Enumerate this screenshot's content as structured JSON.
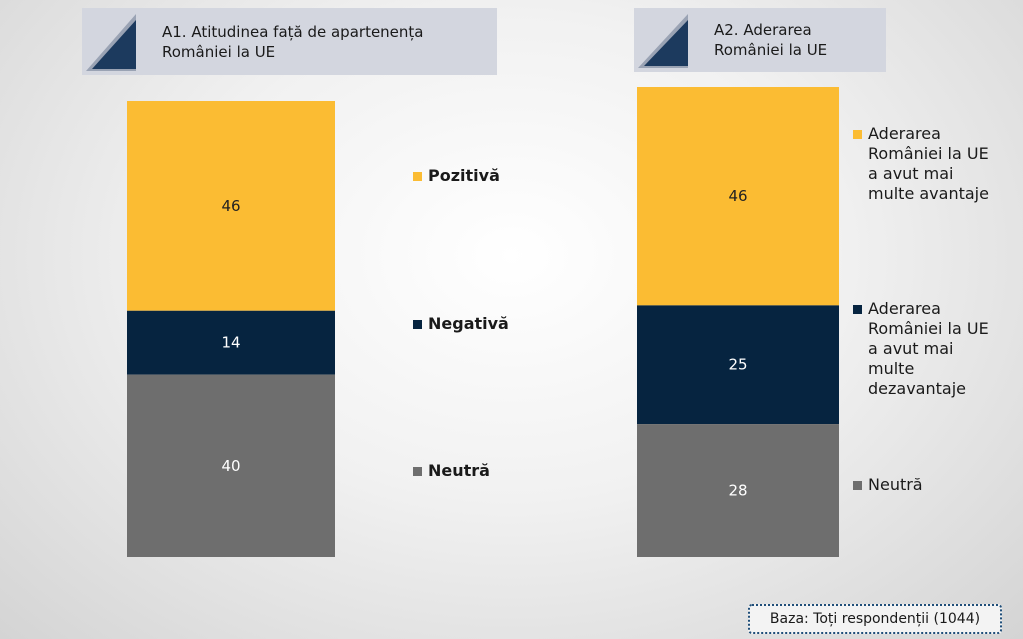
{
  "colors": {
    "positive": "#fbbc33",
    "negative": "#062440",
    "neutral": "#6e6e6e"
  },
  "chart_data": [
    {
      "type": "bar",
      "stacked": true,
      "title": "A1. Atitudinea față de apartenența României la UE",
      "title_lines": [
        "A1. Atitudinea față de apartenența",
        "României la UE"
      ],
      "ylim": [
        0,
        100
      ],
      "series": [
        {
          "name": "Pozitivă",
          "value": 46,
          "label": "46",
          "color": "#fbbc33"
        },
        {
          "name": "Negativă",
          "value": 14,
          "label": "14",
          "color": "#062440"
        },
        {
          "name": "Neutră",
          "value": 40,
          "label": "40",
          "color": "#6e6e6e"
        }
      ],
      "legend": [
        {
          "lines": [
            "Pozitivă"
          ]
        },
        {
          "lines": [
            "Negativă"
          ]
        },
        {
          "lines": [
            "Neutră"
          ]
        }
      ]
    },
    {
      "type": "bar",
      "stacked": true,
      "title": "A2. Aderarea României la UE",
      "title_lines": [
        "A2. Aderarea",
        "României la UE"
      ],
      "ylim": [
        0,
        99
      ],
      "series": [
        {
          "name": "Aderarea României la UE a avut mai multe avantaje",
          "value": 46,
          "label": "46",
          "color": "#fbbc33"
        },
        {
          "name": "Aderarea României la UE a avut mai multe dezavantaje",
          "value": 25,
          "label": "25",
          "color": "#062440"
        },
        {
          "name": "Neutră",
          "value": 28,
          "label": "28",
          "color": "#6e6e6e"
        }
      ],
      "legend": [
        {
          "lines": [
            "Aderarea",
            "României la UE",
            "a avut mai",
            "multe avantaje"
          ]
        },
        {
          "lines": [
            "Aderarea",
            "României la UE",
            "a avut mai",
            "multe",
            "dezavantaje"
          ]
        },
        {
          "lines": [
            "Neutră"
          ]
        }
      ]
    }
  ],
  "note": "Baza: Toți respondenții (1044)"
}
